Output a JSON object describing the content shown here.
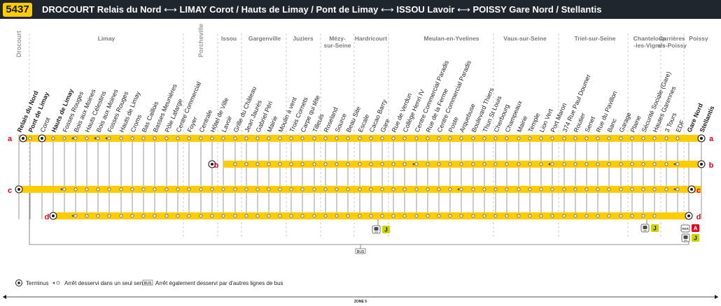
{
  "header": {
    "line_number": "5437",
    "route": [
      "DROCOURT Relais du Nord",
      "LIMAY Corot / Hauts de Limay / Pont de Limay",
      "ISSOU Lavoir",
      "POISSY Gare Nord / Stellantis"
    ],
    "arrow_symbol": "⟷",
    "colors": {
      "header_bg": "#20262e",
      "badge": "#ffcc00",
      "line": "#ffcc00",
      "branch_label": "#e3051b"
    }
  },
  "communes": [
    "Drocourt",
    "Limay",
    "Porcheville",
    "Issou",
    "Gargenville",
    "Juziers",
    "Mézy-sur-Seine",
    "Hardricourt",
    "Meulan-en-Yvelines",
    "Vaux-sur-Seine",
    "Triel-sur-Seine",
    "Chanteloup-les-Vignes",
    "Carrières-s/s-Poissy",
    "Poissy"
  ],
  "stops": [
    "Relais du Nord",
    "Pont de Limay",
    "Corot",
    "Hauts de Limay",
    "Fosses Rouges",
    "Bois aux Moines",
    "Hauts Célestins",
    "Bois aux Moines",
    "Fosses Rouges",
    "Hauts de Limay",
    "Croms",
    "Bas Caillois",
    "Basses Meunières",
    "Pôle Lafarge",
    "Centre Commercial",
    "Foyer",
    "Centrale",
    "Hôtel de Ville",
    "Lavoir",
    "Grille du Château",
    "Jean Jaurès",
    "Gabriel Péri",
    "Mairie",
    "Moulin à vent",
    "Trois Cornets",
    "Carpe qui tête",
    "Tilleuls",
    "Roseland",
    "Source",
    "Beau Site",
    "Escale",
    "Cacao Barry",
    "Gare",
    "Rue de Verdun",
    "Collège Henri IV",
    "Centre Commercial Paradis",
    "Rue de la Ferme",
    "Centre Commercial Paradis",
    "Poste",
    "Arquebuse",
    "Boulevard Thiers",
    "Thun St Louis",
    "Cherbourg",
    "Champeaux",
    "Mairie",
    "Temple",
    "Lion Vert",
    "Port Maron",
    "374 Rue Paul Doumer",
    "Routier",
    "Senet",
    "Rue du Pavillon",
    "Banc",
    "Garage",
    "Plaine",
    "Sécurité Sociale (Gare)",
    "Hautes Garennes",
    "3 Tours",
    "EDF",
    "Gare Nord",
    "Stellantis"
  ],
  "branches": [
    "a",
    "b",
    "c",
    "d"
  ],
  "connections": {
    "rail": "J",
    "rer": "A",
    "bus_icon": "BUS",
    "train_icon": "train-icon",
    "rer_icon": "RER"
  },
  "legend": {
    "terminus": "Terminus",
    "one_way": "Arrêt desservi dans un seul sens",
    "bus_icon": "BUS",
    "other_lines": "Arrêt également desservi par d'autres lignes de bus"
  },
  "zone_label": "ZONE 5"
}
